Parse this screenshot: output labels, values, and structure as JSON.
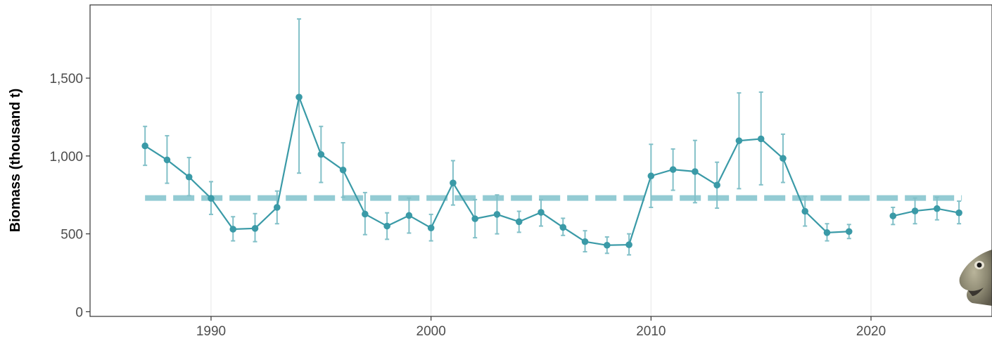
{
  "chart_data": {
    "type": "line",
    "title": "",
    "xlabel": "",
    "ylabel": "Biomass (thousand t)",
    "xlim": [
      1984.5,
      2025.5
    ],
    "ylim": [
      -30,
      1970
    ],
    "x_ticks": [
      1990,
      2000,
      2010,
      2020
    ],
    "x_tick_labels": [
      "1990",
      "2000",
      "2010",
      "2020"
    ],
    "y_ticks": [
      0,
      500,
      1000,
      1500
    ],
    "y_tick_labels": [
      "0",
      "500",
      "1,000",
      "1,500"
    ],
    "grid": "vertical major",
    "reference_line": {
      "value": 730,
      "x_range": [
        1987,
        2024
      ],
      "style": "dashed",
      "color": "#93cbd3"
    },
    "series": [
      {
        "color": "#3a9aa7",
        "error_color": "#82c0c8",
        "points": [
          {
            "x": 1987,
            "y": 1065,
            "lo": 940,
            "hi": 1190
          },
          {
            "x": 1988,
            "y": 975,
            "lo": 825,
            "hi": 1130
          },
          {
            "x": 1989,
            "y": 865,
            "lo": 745,
            "hi": 990
          },
          {
            "x": 1990,
            "y": 728,
            "lo": 625,
            "hi": 835
          },
          {
            "x": 1991,
            "y": 530,
            "lo": 455,
            "hi": 610
          },
          {
            "x": 1992,
            "y": 535,
            "lo": 450,
            "hi": 630
          },
          {
            "x": 1993,
            "y": 670,
            "lo": 565,
            "hi": 775
          },
          {
            "x": 1994,
            "y": 1378,
            "lo": 890,
            "hi": 1880
          },
          {
            "x": 1995,
            "y": 1010,
            "lo": 830,
            "hi": 1190
          },
          {
            "x": 1996,
            "y": 910,
            "lo": 735,
            "hi": 1085
          },
          {
            "x": 1997,
            "y": 627,
            "lo": 495,
            "hi": 765
          },
          {
            "x": 1998,
            "y": 550,
            "lo": 465,
            "hi": 635
          },
          {
            "x": 1999,
            "y": 618,
            "lo": 505,
            "hi": 730
          },
          {
            "x": 2000,
            "y": 538,
            "lo": 455,
            "hi": 625
          },
          {
            "x": 2001,
            "y": 827,
            "lo": 685,
            "hi": 970
          },
          {
            "x": 2002,
            "y": 597,
            "lo": 475,
            "hi": 720
          },
          {
            "x": 2003,
            "y": 625,
            "lo": 500,
            "hi": 750
          },
          {
            "x": 2004,
            "y": 578,
            "lo": 510,
            "hi": 645
          },
          {
            "x": 2005,
            "y": 638,
            "lo": 550,
            "hi": 720
          },
          {
            "x": 2006,
            "y": 542,
            "lo": 490,
            "hi": 600
          },
          {
            "x": 2007,
            "y": 450,
            "lo": 385,
            "hi": 520
          },
          {
            "x": 2008,
            "y": 427,
            "lo": 375,
            "hi": 480
          },
          {
            "x": 2009,
            "y": 430,
            "lo": 365,
            "hi": 500
          },
          {
            "x": 2010,
            "y": 872,
            "lo": 670,
            "hi": 1075
          },
          {
            "x": 2011,
            "y": 913,
            "lo": 780,
            "hi": 1045
          },
          {
            "x": 2012,
            "y": 900,
            "lo": 700,
            "hi": 1100
          },
          {
            "x": 2013,
            "y": 813,
            "lo": 665,
            "hi": 960
          },
          {
            "x": 2014,
            "y": 1098,
            "lo": 790,
            "hi": 1405
          },
          {
            "x": 2015,
            "y": 1110,
            "lo": 815,
            "hi": 1410
          },
          {
            "x": 2016,
            "y": 985,
            "lo": 830,
            "hi": 1140
          },
          {
            "x": 2017,
            "y": 645,
            "lo": 550,
            "hi": 740
          },
          {
            "x": 2018,
            "y": 508,
            "lo": 455,
            "hi": 565
          },
          {
            "x": 2019,
            "y": 515,
            "lo": 470,
            "hi": 560
          },
          {
            "x": 2021,
            "y": 615,
            "lo": 560,
            "hi": 670
          },
          {
            "x": 2022,
            "y": 647,
            "lo": 565,
            "hi": 730
          },
          {
            "x": 2023,
            "y": 662,
            "lo": 590,
            "hi": 735
          },
          {
            "x": 2024,
            "y": 635,
            "lo": 565,
            "hi": 710
          }
        ]
      }
    ]
  },
  "decoration": {
    "fish_icon": "fish-icon"
  }
}
